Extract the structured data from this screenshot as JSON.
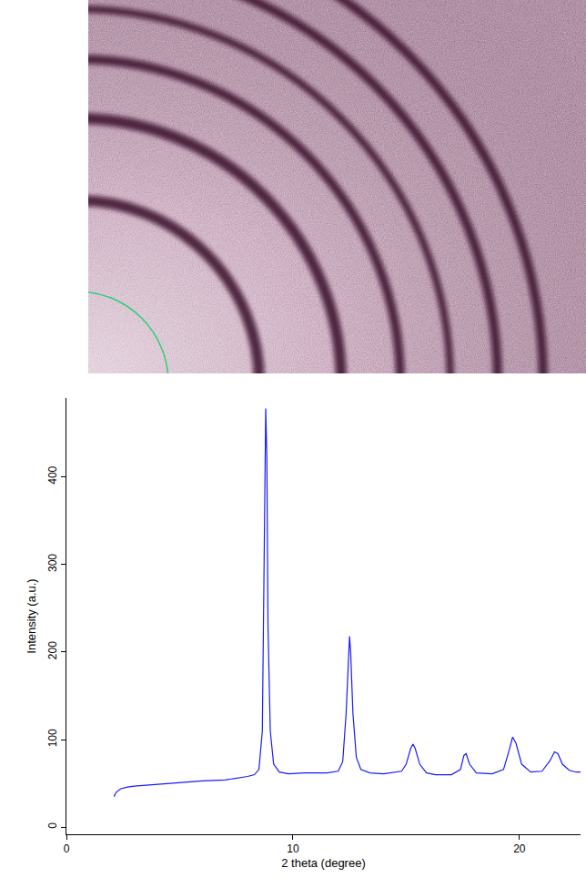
{
  "chart_data": {
    "type": "line",
    "xlabel": "2 theta (degree)",
    "ylabel": "Intensity (a.u.)",
    "color": "#1a1aff",
    "grid": false,
    "xlim": [
      0,
      22.7
    ],
    "ylim": [
      -8,
      490
    ],
    "xticks": [
      0,
      10,
      20
    ],
    "yticks": [
      0,
      100,
      200,
      300,
      400
    ],
    "x": [
      2.1,
      2.2,
      2.4,
      2.7,
      3.0,
      4.0,
      5.0,
      6.0,
      7.0,
      7.6,
      8.0,
      8.3,
      8.5,
      8.65,
      8.75,
      8.8,
      8.85,
      8.9,
      9.0,
      9.15,
      9.4,
      9.8,
      10.5,
      11.5,
      12.0,
      12.2,
      12.35,
      12.45,
      12.5,
      12.55,
      12.65,
      12.8,
      13.0,
      13.4,
      14.0,
      14.8,
      15.0,
      15.2,
      15.3,
      15.4,
      15.6,
      15.9,
      16.3,
      17.0,
      17.4,
      17.55,
      17.65,
      17.8,
      18.1,
      18.8,
      19.3,
      19.55,
      19.7,
      19.85,
      20.1,
      20.5,
      21.0,
      21.35,
      21.55,
      21.7,
      21.9,
      22.2,
      22.5,
      22.7
    ],
    "values": [
      35,
      40,
      44,
      46,
      47,
      49,
      51,
      53,
      54,
      56,
      58,
      60,
      66,
      110,
      330,
      478,
      420,
      230,
      110,
      72,
      63,
      61,
      62,
      62,
      64,
      75,
      130,
      200,
      218,
      200,
      130,
      80,
      66,
      62,
      61,
      64,
      72,
      90,
      95,
      90,
      72,
      62,
      60,
      60,
      66,
      82,
      84,
      72,
      62,
      61,
      66,
      88,
      103,
      96,
      72,
      63,
      64,
      76,
      86,
      84,
      72,
      65,
      63,
      63
    ]
  }
}
